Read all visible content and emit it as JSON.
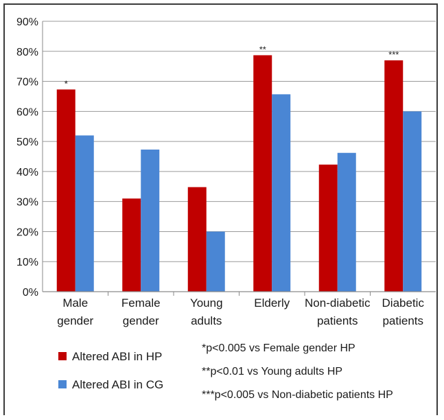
{
  "chart_data": {
    "type": "bar",
    "categories": [
      [
        "Male",
        "gender"
      ],
      [
        "Female",
        "gender"
      ],
      [
        "Young",
        "adults"
      ],
      [
        "Elderly"
      ],
      [
        "Non-diabetic",
        "patients"
      ],
      [
        "Diabetic",
        "patients"
      ]
    ],
    "series": [
      {
        "name": "Altered ABI in HP",
        "color": "#c00000",
        "values": [
          67.3,
          31.0,
          34.8,
          78.7,
          42.3,
          77.0
        ]
      },
      {
        "name": "Altered ABI in CG",
        "color": "#4a86d4",
        "values": [
          52.0,
          47.3,
          20.0,
          65.7,
          46.2,
          60.0
        ]
      }
    ],
    "significance": [
      "*",
      "",
      "",
      "**",
      "",
      "***"
    ],
    "yticks": [
      "0%",
      "10%",
      "20%",
      "30%",
      "40%",
      "50%",
      "60%",
      "70%",
      "80%",
      "90%"
    ],
    "ylim": [
      0,
      90
    ],
    "grid": true,
    "legend_position": "bottom-left",
    "notes": [
      "*p<0.005 vs Female gender HP",
      "**p<0.01 vs Young adults HP",
      "***p<0.005 vs Non-diabetic patients HP"
    ]
  }
}
